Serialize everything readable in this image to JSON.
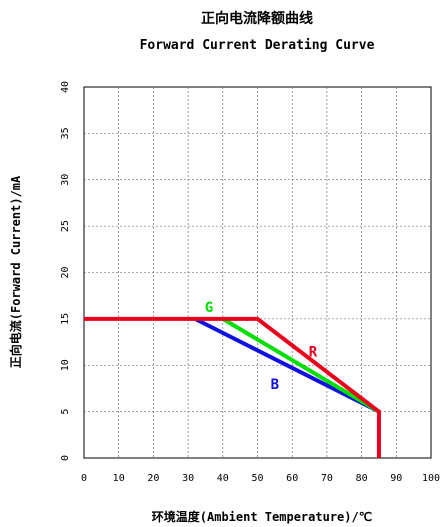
{
  "chart_data": {
    "type": "line",
    "title": "正向电流降额曲线",
    "subtitle": "Forward Current Derating Curve",
    "xlabel": "环境温度(Ambient Temperature)/℃",
    "ylabel": "正向电流(Forward Current)/mA",
    "xlim": [
      0,
      100
    ],
    "ylim": [
      0,
      40
    ],
    "xticks": [
      0,
      10,
      20,
      30,
      40,
      50,
      60,
      70,
      80,
      90,
      100
    ],
    "yticks": [
      0,
      5,
      10,
      15,
      20,
      25,
      30,
      35,
      40
    ],
    "grid": "dashed",
    "series": [
      {
        "name": "R",
        "color": "#e8001c",
        "x": [
          0,
          50,
          85,
          85
        ],
        "y": [
          15,
          15,
          5,
          0
        ]
      },
      {
        "name": "G",
        "color": "#00e000",
        "x": [
          40,
          85
        ],
        "y": [
          15,
          5
        ]
      },
      {
        "name": "B",
        "color": "#1010e0",
        "x": [
          32,
          85
        ],
        "y": [
          15,
          5
        ]
      }
    ]
  }
}
